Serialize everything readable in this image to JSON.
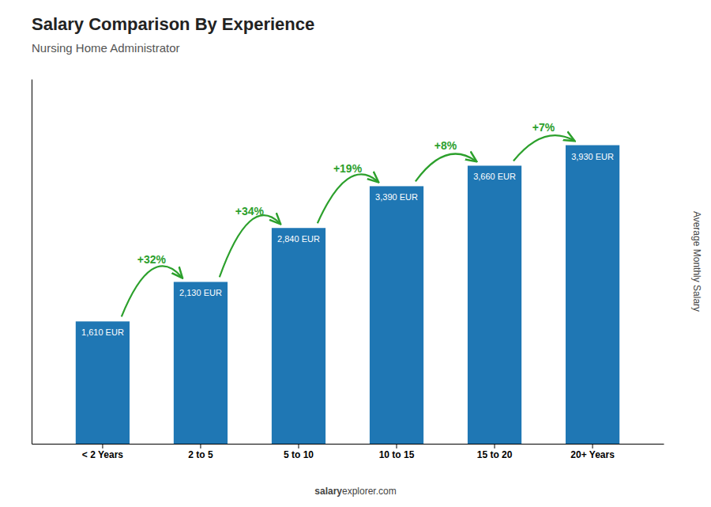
{
  "chart_data": {
    "type": "bar",
    "title": "Salary Comparison By Experience",
    "subtitle": "Nursing Home Administrator",
    "ylabel": "Average Monthly Salary",
    "categories": [
      "< 2 Years",
      "2 to 5",
      "5 to 10",
      "10 to 15",
      "15 to 20",
      "20+ Years"
    ],
    "values": [
      1610,
      2130,
      2840,
      3390,
      3660,
      3930
    ],
    "value_labels": [
      "1,610 EUR",
      "2,130 EUR",
      "2,840 EUR",
      "3,390 EUR",
      "3,660 EUR",
      "3,930 EUR"
    ],
    "data_labels": true,
    "annotations": [
      "+32%",
      "+34%",
      "+19%",
      "+8%",
      "+7%"
    ],
    "footer": [
      "salary",
      "explorer.com"
    ],
    "ylim": [
      0,
      4800
    ],
    "tick_labels": "x",
    "grid": false
  }
}
